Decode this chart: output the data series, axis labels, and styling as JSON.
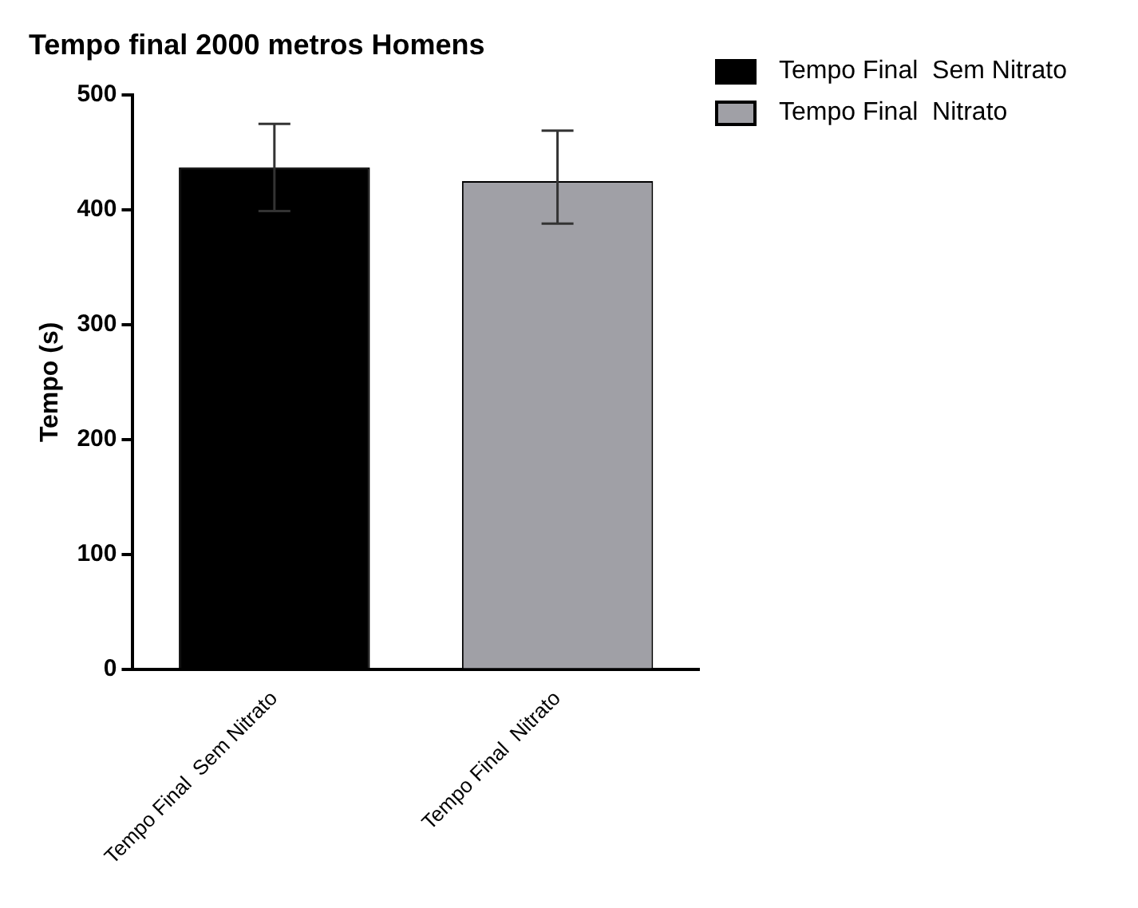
{
  "chart_data": {
    "type": "bar",
    "title": "Tempo final 2000 metros Homens",
    "ylabel": "Tempo (s)",
    "categories": [
      "Tempo Final  Sem Nitrato",
      "Tempo Final  Nitrato"
    ],
    "series": [
      {
        "name": "Tempo Final  Sem Nitrato",
        "color": "#000000",
        "values": [
          437,
          null
        ],
        "errors": [
          38,
          null
        ]
      },
      {
        "name": "Tempo Final  Nitrato",
        "color": "#a0a0a6",
        "values": [
          null,
          425
        ],
        "errors": [
          null,
          [
            388,
            469
          ]
        ]
      }
    ],
    "ylim": [
      0,
      500
    ],
    "yticks": [
      0,
      100,
      200,
      300,
      400,
      500
    ],
    "grid": false,
    "legend": "top right"
  }
}
